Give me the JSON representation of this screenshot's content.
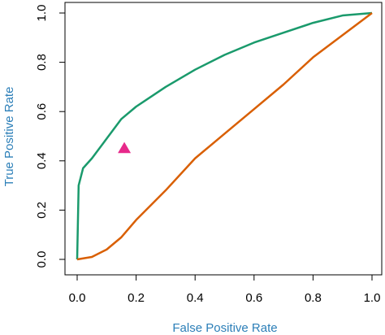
{
  "chart_data": {
    "type": "line",
    "xlabel": "False Positive Rate",
    "ylabel": "True Positive Rate",
    "label_color": "#2c7fb8",
    "xlim": [
      0,
      1
    ],
    "ylim": [
      0,
      1
    ],
    "xticks": [
      {
        "value": 0,
        "label": "0.0"
      },
      0.2,
      0.4,
      0.6,
      0.8,
      {
        "value": 1,
        "label": "1.0"
      }
    ],
    "yticks": [
      {
        "value": 0,
        "label": "0.0"
      },
      0.2,
      0.4,
      0.6,
      0.8,
      {
        "value": 1,
        "label": "1.0"
      }
    ],
    "series": [
      {
        "color": "#1a9a6c",
        "x": [
          0,
          0.005,
          0.02,
          0.05,
          0.1,
          0.15,
          0.2,
          0.3,
          0.4,
          0.5,
          0.6,
          0.7,
          0.8,
          0.9,
          1
        ],
        "values": [
          0,
          0.3,
          0.37,
          0.41,
          0.49,
          0.57,
          0.62,
          0.7,
          0.77,
          0.83,
          0.88,
          0.92,
          0.96,
          0.99,
          1
        ]
      },
      {
        "color": "#d95f02",
        "x": [
          0,
          0.05,
          0.1,
          0.15,
          0.2,
          0.3,
          0.4,
          0.5,
          0.6,
          0.7,
          0.8,
          0.9,
          1
        ],
        "values": [
          0,
          0.01,
          0.04,
          0.09,
          0.16,
          0.28,
          0.41,
          0.51,
          0.61,
          0.71,
          0.82,
          0.91,
          1
        ]
      }
    ],
    "points": {
      "color": "#e7298a",
      "x": [
        0.16
      ],
      "values": [
        0.45
      ]
    }
  }
}
